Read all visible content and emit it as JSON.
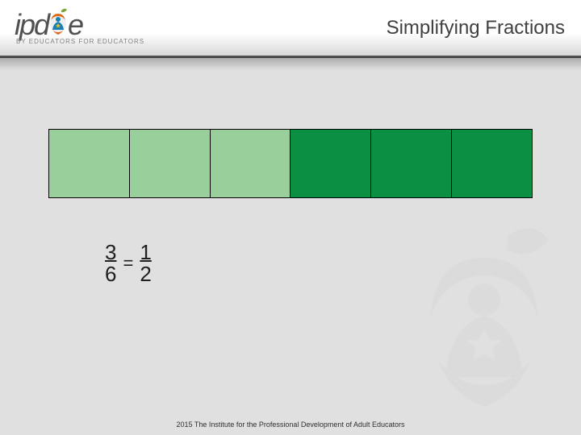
{
  "header": {
    "logo_prefix": "ipd",
    "logo_suffix": "e",
    "tagline": "BY EDUCATORS FOR EDUCATORS",
    "title": "Simplifying Fractions"
  },
  "fraction_diagram": {
    "cells": 6,
    "light_count": 3,
    "light_color": "#99cf9b",
    "dark_color": "#0b8f43",
    "border_color": "#000000"
  },
  "equation": {
    "left_num": "3",
    "left_den": "6",
    "equals": "=",
    "right_num": "1",
    "right_den": "2",
    "text_color": "#202020"
  },
  "logo_colors": {
    "leaf": "#7aa537",
    "apple": "#d96b1f",
    "person": "#1a7fb4",
    "star": "#f0c020",
    "circle": "#f0f0f0"
  },
  "watermark_colors": {
    "fill": "#cfcfcf"
  },
  "copyright": "2015 The Institute for the Professional Development of Adult Educators"
}
